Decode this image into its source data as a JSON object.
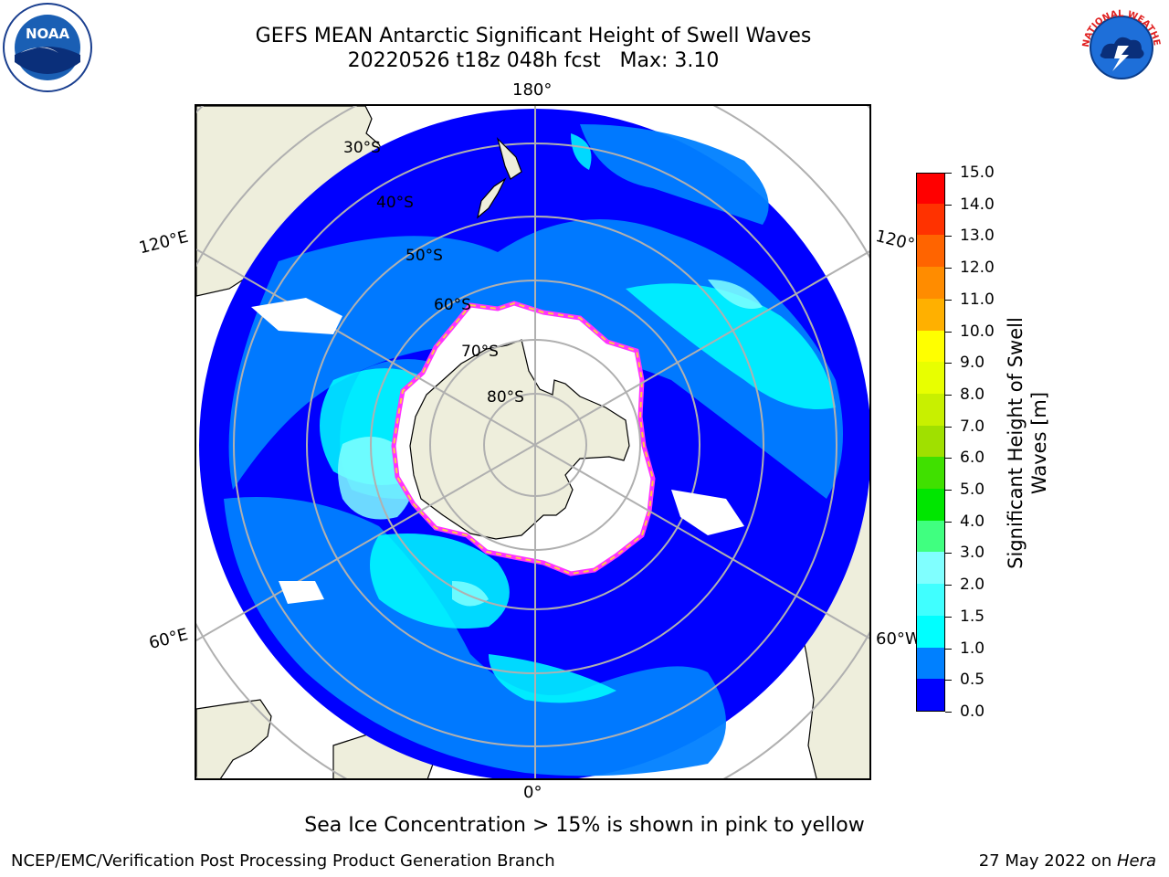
{
  "title": {
    "line1": "GEFS MEAN Antarctic Significant Height of Swell Waves",
    "line2": "20220526 t18z 048h fcst   Max: 3.10"
  },
  "logos": {
    "left_icon": "noaa-logo",
    "left_text": "NOAA",
    "right_icon": "nws-logo",
    "right_text": "NATIONAL WEATHER SERVICE"
  },
  "map": {
    "projection": "south-polar-stereographic",
    "longitude_labels": {
      "top": "180°",
      "bottom": "0°",
      "upper_left": "120°E",
      "upper_right": "120°W",
      "lower_left": "60°E",
      "lower_right": "60°W"
    },
    "latitude_labels": [
      "30°S",
      "40°S",
      "50°S",
      "60°S",
      "70°S",
      "80°S"
    ],
    "colors": {
      "land": "#eeeedc",
      "ice": "#ffffff",
      "grid": "#b0b0b0",
      "ice_edge": [
        "#ff33ff",
        "#ff66ff",
        "#ffcc44"
      ]
    }
  },
  "colorbar": {
    "title_line1": "Significant Height of Swell",
    "title_line2": "Waves [m]",
    "ticks": [
      "0.0",
      "0.5",
      "1.0",
      "1.5",
      "2.0",
      "3.0",
      "4.0",
      "5.0",
      "6.0",
      "7.0",
      "8.0",
      "9.0",
      "10.0",
      "11.0",
      "12.0",
      "13.0",
      "14.0",
      "15.0"
    ],
    "colors": [
      "#0000ff",
      "#0080ff",
      "#00ffff",
      "#40ffff",
      "#80ffff",
      "#40ff80",
      "#00e600",
      "#40e000",
      "#a0e000",
      "#c8f000",
      "#e8ff00",
      "#ffff00",
      "#ffb000",
      "#ff8c00",
      "#ff6400",
      "#ff3200",
      "#ff0000"
    ]
  },
  "caption": "Sea Ice Concentration > 15% is shown in pink to yellow",
  "footer": {
    "left": "NCEP/EMC/Verification Post Processing Product Generation Branch",
    "right_prefix": "27 May 2022 on ",
    "right_italic": "Hera"
  }
}
